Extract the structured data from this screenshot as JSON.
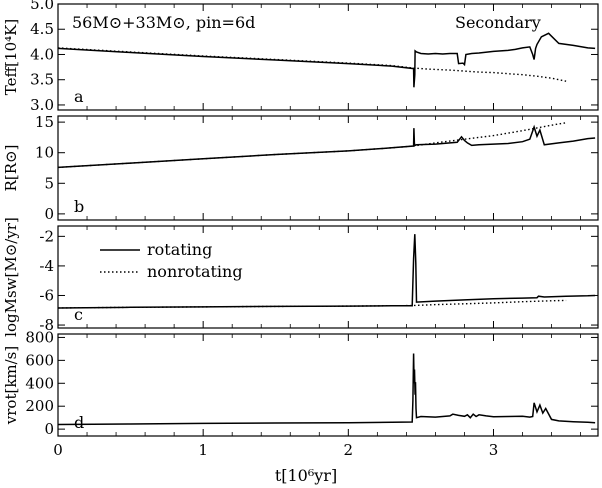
{
  "header": {
    "system_label": "56M⊙+33M⊙, pin=6d",
    "component_label": "Secondary"
  },
  "legend": {
    "rotating": "rotating",
    "nonrotating": "nonrotating"
  },
  "chart_data": {
    "type": "line",
    "xlabel": "t[10⁶yr]",
    "xlim": [
      0,
      3.72
    ],
    "xticks": [
      0,
      1,
      2,
      3
    ],
    "xtick_labels": [
      "0",
      "1",
      "2",
      "3"
    ],
    "panels": [
      {
        "letter": "a",
        "ylabel": "Teff[10⁴K]",
        "ylim": [
          2.9,
          5.0
        ],
        "yticks": [
          3.0,
          3.5,
          4.0,
          4.5,
          5.0
        ],
        "ytick_labels": [
          "3.0",
          "3.5",
          "4.0",
          "4.5",
          "5.0"
        ],
        "series": [
          {
            "name": "rotating",
            "style": "solid",
            "x": [
              0.0,
              0.5,
              1.0,
              1.5,
              2.0,
              2.3,
              2.45,
              2.452,
              2.458,
              2.46,
              2.47,
              2.5,
              2.55,
              2.6,
              2.65,
              2.7,
              2.75,
              2.76,
              2.79,
              2.8,
              2.81,
              2.85,
              2.9,
              3.0,
              3.05,
              3.1,
              3.15,
              3.2,
              3.25,
              3.27,
              3.28,
              3.29,
              3.3,
              3.33,
              3.38,
              3.45,
              3.55,
              3.65,
              3.7
            ],
            "y": [
              4.12,
              4.04,
              3.96,
              3.89,
              3.82,
              3.77,
              3.72,
              3.35,
              3.6,
              4.07,
              4.05,
              4.02,
              4.01,
              4.02,
              4.01,
              4.02,
              4.02,
              3.82,
              3.83,
              3.8,
              4.0,
              4.02,
              4.03,
              4.06,
              4.07,
              4.08,
              4.1,
              4.13,
              4.15,
              4.0,
              3.9,
              4.12,
              4.2,
              4.35,
              4.42,
              4.22,
              4.18,
              4.13,
              4.12
            ]
          },
          {
            "name": "nonrotating",
            "style": "dotted",
            "x": [
              0.0,
              0.5,
              1.0,
              1.5,
              2.0,
              2.3,
              2.45,
              2.55,
              2.7,
              2.8,
              2.9,
              3.0,
              3.1,
              3.2,
              3.3,
              3.4,
              3.5
            ],
            "y": [
              4.13,
              4.05,
              3.97,
              3.9,
              3.83,
              3.78,
              3.73,
              3.71,
              3.69,
              3.67,
              3.65,
              3.64,
              3.62,
              3.6,
              3.57,
              3.53,
              3.47
            ]
          }
        ]
      },
      {
        "letter": "b",
        "ylabel": "R[R⊙]",
        "ylim": [
          -1,
          16
        ],
        "yticks": [
          0,
          5,
          10,
          15
        ],
        "ytick_labels": [
          "0",
          "5",
          "10",
          "15"
        ],
        "series": [
          {
            "name": "rotating",
            "style": "solid",
            "x": [
              0.0,
              0.5,
              1.0,
              1.5,
              2.0,
              2.3,
              2.45,
              2.452,
              2.455,
              2.46,
              2.47,
              2.6,
              2.75,
              2.78,
              2.8,
              2.82,
              2.85,
              2.9,
              3.0,
              3.1,
              3.2,
              3.25,
              3.28,
              3.3,
              3.32,
              3.35,
              3.45,
              3.55,
              3.65,
              3.7
            ],
            "y": [
              7.6,
              8.3,
              9.0,
              9.7,
              10.3,
              10.8,
              11.1,
              14.0,
              11.5,
              11.2,
              11.3,
              11.4,
              11.7,
              12.6,
              12.0,
              11.6,
              11.2,
              11.3,
              11.4,
              11.5,
              11.8,
              12.2,
              14.2,
              12.7,
              13.7,
              11.3,
              11.6,
              11.9,
              12.3,
              12.4
            ]
          },
          {
            "name": "nonrotating",
            "style": "dotted",
            "x": [
              0.0,
              0.5,
              1.0,
              1.5,
              2.0,
              2.3,
              2.45,
              2.6,
              2.8,
              3.0,
              3.2,
              3.4,
              3.5
            ],
            "y": [
              7.6,
              8.3,
              9.0,
              9.7,
              10.3,
              10.8,
              11.1,
              11.6,
              12.2,
              12.8,
              13.6,
              14.5,
              14.9
            ]
          }
        ]
      },
      {
        "letter": "c",
        "ylabel": "logMsw[M⊙/yr]",
        "ylim": [
          -8.2,
          -1.3
        ],
        "yticks": [
          -8,
          -6,
          -4,
          -2
        ],
        "ytick_labels": [
          "-8",
          "-6",
          "-4",
          "-2"
        ],
        "series": [
          {
            "name": "rotating",
            "style": "solid",
            "x": [
              0.0,
              0.5,
              1.0,
              1.5,
              2.0,
              2.3,
              2.44,
              2.45,
              2.458,
              2.465,
              2.47,
              2.6,
              2.8,
              3.0,
              3.2,
              3.3,
              3.31,
              3.35,
              3.5,
              3.65,
              3.7
            ],
            "y": [
              -6.85,
              -6.8,
              -6.77,
              -6.74,
              -6.72,
              -6.7,
              -6.7,
              -3.5,
              -1.85,
              -3.8,
              -6.45,
              -6.38,
              -6.3,
              -6.22,
              -6.18,
              -6.15,
              -6.05,
              -6.1,
              -6.05,
              -6.02,
              -6.0
            ]
          },
          {
            "name": "nonrotating",
            "style": "dotted",
            "x": [
              0.0,
              0.5,
              1.0,
              1.5,
              2.0,
              2.3,
              2.45,
              2.6,
              2.8,
              3.0,
              3.2,
              3.4,
              3.5
            ],
            "y": [
              -6.85,
              -6.8,
              -6.77,
              -6.74,
              -6.72,
              -6.7,
              -6.68,
              -6.62,
              -6.56,
              -6.5,
              -6.42,
              -6.36,
              -6.33
            ]
          }
        ]
      },
      {
        "letter": "d",
        "ylabel": "vrot[km/s]",
        "ylim": [
          -60,
          830
        ],
        "yticks": [
          0,
          200,
          400,
          600,
          800
        ],
        "ytick_labels": [
          "0",
          "200",
          "400",
          "600",
          "800"
        ],
        "series": [
          {
            "name": "rotating",
            "style": "solid",
            "x": [
              0.0,
              0.5,
              1.0,
              1.5,
              2.0,
              2.3,
              2.44,
              2.445,
              2.45,
              2.453,
              2.456,
              2.46,
              2.463,
              2.466,
              2.47,
              2.5,
              2.6,
              2.7,
              2.72,
              2.76,
              2.8,
              2.82,
              2.84,
              2.86,
              2.88,
              2.9,
              2.95,
              3.0,
              3.1,
              3.2,
              3.25,
              3.27,
              3.28,
              3.3,
              3.32,
              3.34,
              3.36,
              3.4,
              3.45,
              3.55,
              3.65,
              3.7
            ],
            "y": [
              40,
              45,
              50,
              53,
              56,
              60,
              62,
              250,
              660,
              400,
              520,
              300,
              410,
              180,
              100,
              110,
              105,
              115,
              130,
              120,
              112,
              125,
              100,
              130,
              110,
              125,
              115,
              108,
              110,
              112,
              105,
              110,
              230,
              150,
              210,
              140,
              180,
              85,
              72,
              65,
              60,
              55
            ]
          }
        ]
      }
    ]
  }
}
